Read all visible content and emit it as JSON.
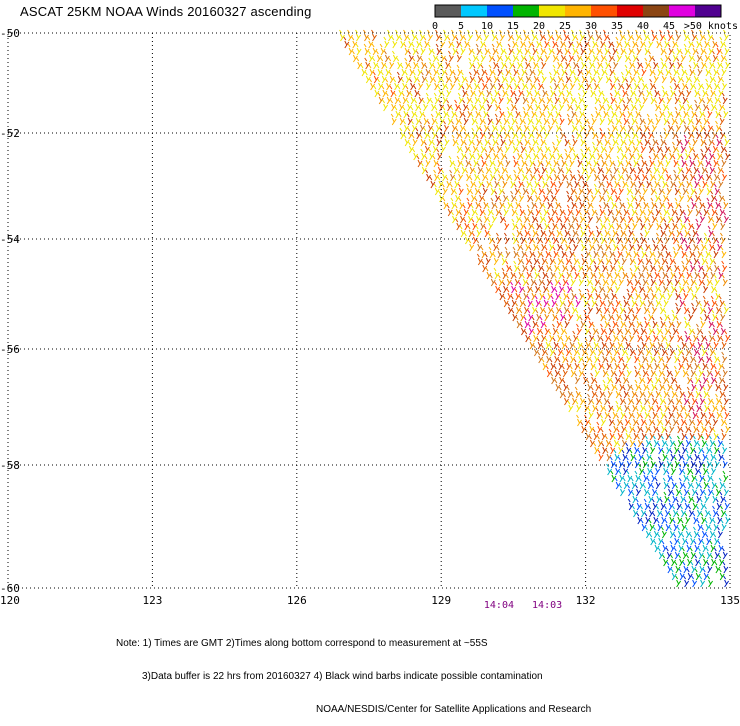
{
  "title": "ASCAT 25KM NOAA Winds 20160327 ascending",
  "legend": {
    "bins": [
      {
        "label": "0",
        "color": "#5a5a5a"
      },
      {
        "label": "5",
        "color": "#00c8ff"
      },
      {
        "label": "10",
        "color": "#0050ff"
      },
      {
        "label": "15",
        "color": "#00b400"
      },
      {
        "label": "20",
        "color": "#f0e600"
      },
      {
        "label": "25",
        "color": "#ffb400"
      },
      {
        "label": "30",
        "color": "#ff5000"
      },
      {
        "label": "35",
        "color": "#e00000"
      },
      {
        "label": "40",
        "color": "#8b4513"
      },
      {
        "label": "45",
        "color": "#e000e0"
      },
      {
        "label": "",
        "color": "#500090"
      }
    ],
    "overflow_label": ">50 knots"
  },
  "axes": {
    "lon_labels": [
      "120",
      "123",
      "126",
      "129",
      "132",
      "135"
    ],
    "lat_labels": [
      "-50",
      "-52",
      "-54",
      "-56",
      "-58",
      "-60"
    ],
    "lon_values": [
      120,
      123,
      126,
      129,
      132,
      135
    ],
    "lat_values": [
      -50,
      -52,
      -54,
      -56,
      -58,
      -60
    ]
  },
  "times": [
    {
      "label": "14:04",
      "lon": 130.2
    },
    {
      "label": "14:03",
      "lon": 131.2
    }
  ],
  "time_color": "#800080",
  "notes": [
    "Note: 1) Times are GMT 2)Times along bottom correspond to measurement at ~55S",
    "3)Data buffer is 22 hrs from 20160327 4) Black wind barbs indicate possible contamination",
    "NOAA/NESDIS/Center for Satellite Applications and Research"
  ]
}
